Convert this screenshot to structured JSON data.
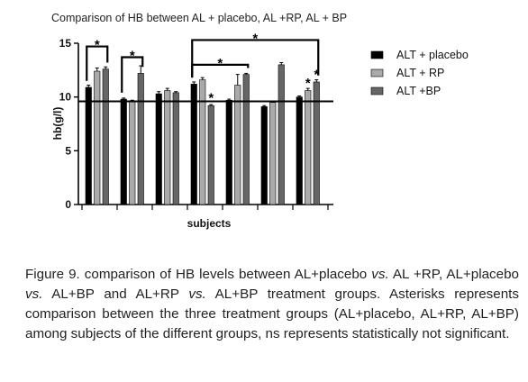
{
  "chart_data": {
    "type": "bar",
    "title": "Comparison of HB between AL + placebo, AL +RP, AL + BP",
    "xlabel": "subjects",
    "ylabel": "hb(g/l)",
    "ylim": [
      0,
      15
    ],
    "yticks": [
      0,
      5,
      10,
      15
    ],
    "reference_line": 9.6,
    "legend_position": "right",
    "colors": {
      "ALT + placebo": "#000000",
      "ALT + RP": "#aaaaaa",
      "ALT +BP": "#666666"
    },
    "series": [
      {
        "name": "ALT + placebo",
        "values": [
          10.9,
          9.8,
          10.3,
          11.2,
          9.7,
          9.1,
          10.0
        ]
      },
      {
        "name": "ALT + RP",
        "values": [
          12.4,
          9.6,
          10.6,
          11.6,
          11.1,
          9.5,
          10.6
        ]
      },
      {
        "name": "ALT +BP",
        "values": [
          12.6,
          12.2,
          10.4,
          9.2,
          12.1,
          13.0,
          11.4
        ]
      }
    ],
    "error_bars": [
      [
        0.2,
        0.1,
        0.2,
        0.2,
        0.1,
        0.1,
        0.1
      ],
      [
        0.3,
        0.1,
        0.2,
        0.2,
        1.0,
        0.1,
        0.2
      ],
      [
        0.2,
        0.7,
        0.1,
        0.1,
        0.1,
        0.2,
        0.2
      ]
    ],
    "annotations": [
      {
        "text": "*",
        "from_group": 0,
        "to_group": 0,
        "level": 14.7
      },
      {
        "text": "*",
        "from_group": 1,
        "to_group": 1,
        "level": 13.7
      },
      {
        "text": "*",
        "from_group": 3,
        "to_group": 6,
        "level": 15.3
      },
      {
        "text": "*",
        "from_group": 3,
        "to_group": 4,
        "level": 13.0
      },
      {
        "text": "*",
        "group": 3,
        "series": 2
      },
      {
        "text": "*",
        "group": 6,
        "series": 1
      },
      {
        "text": "*",
        "group": 6,
        "series": 2
      }
    ]
  },
  "caption": {
    "label": "Figure 9.",
    "parts": [
      {
        "t": " comparison of HB levels between AL+placebo ",
        "i": false
      },
      {
        "t": "vs.",
        "i": true
      },
      {
        "t": " AL +RP, AL+placebo ",
        "i": false
      },
      {
        "t": "vs.",
        "i": true
      },
      {
        "t": " AL+BP and AL+RP ",
        "i": false
      },
      {
        "t": "vs.",
        "i": true
      },
      {
        "t": " AL+BP treatment groups. Asterisks represents comparison between the three treatment groups (AL+placebo, AL+RP, AL+BP) among subjects of the different groups, ns represents statistically not significant.",
        "i": false
      }
    ]
  }
}
